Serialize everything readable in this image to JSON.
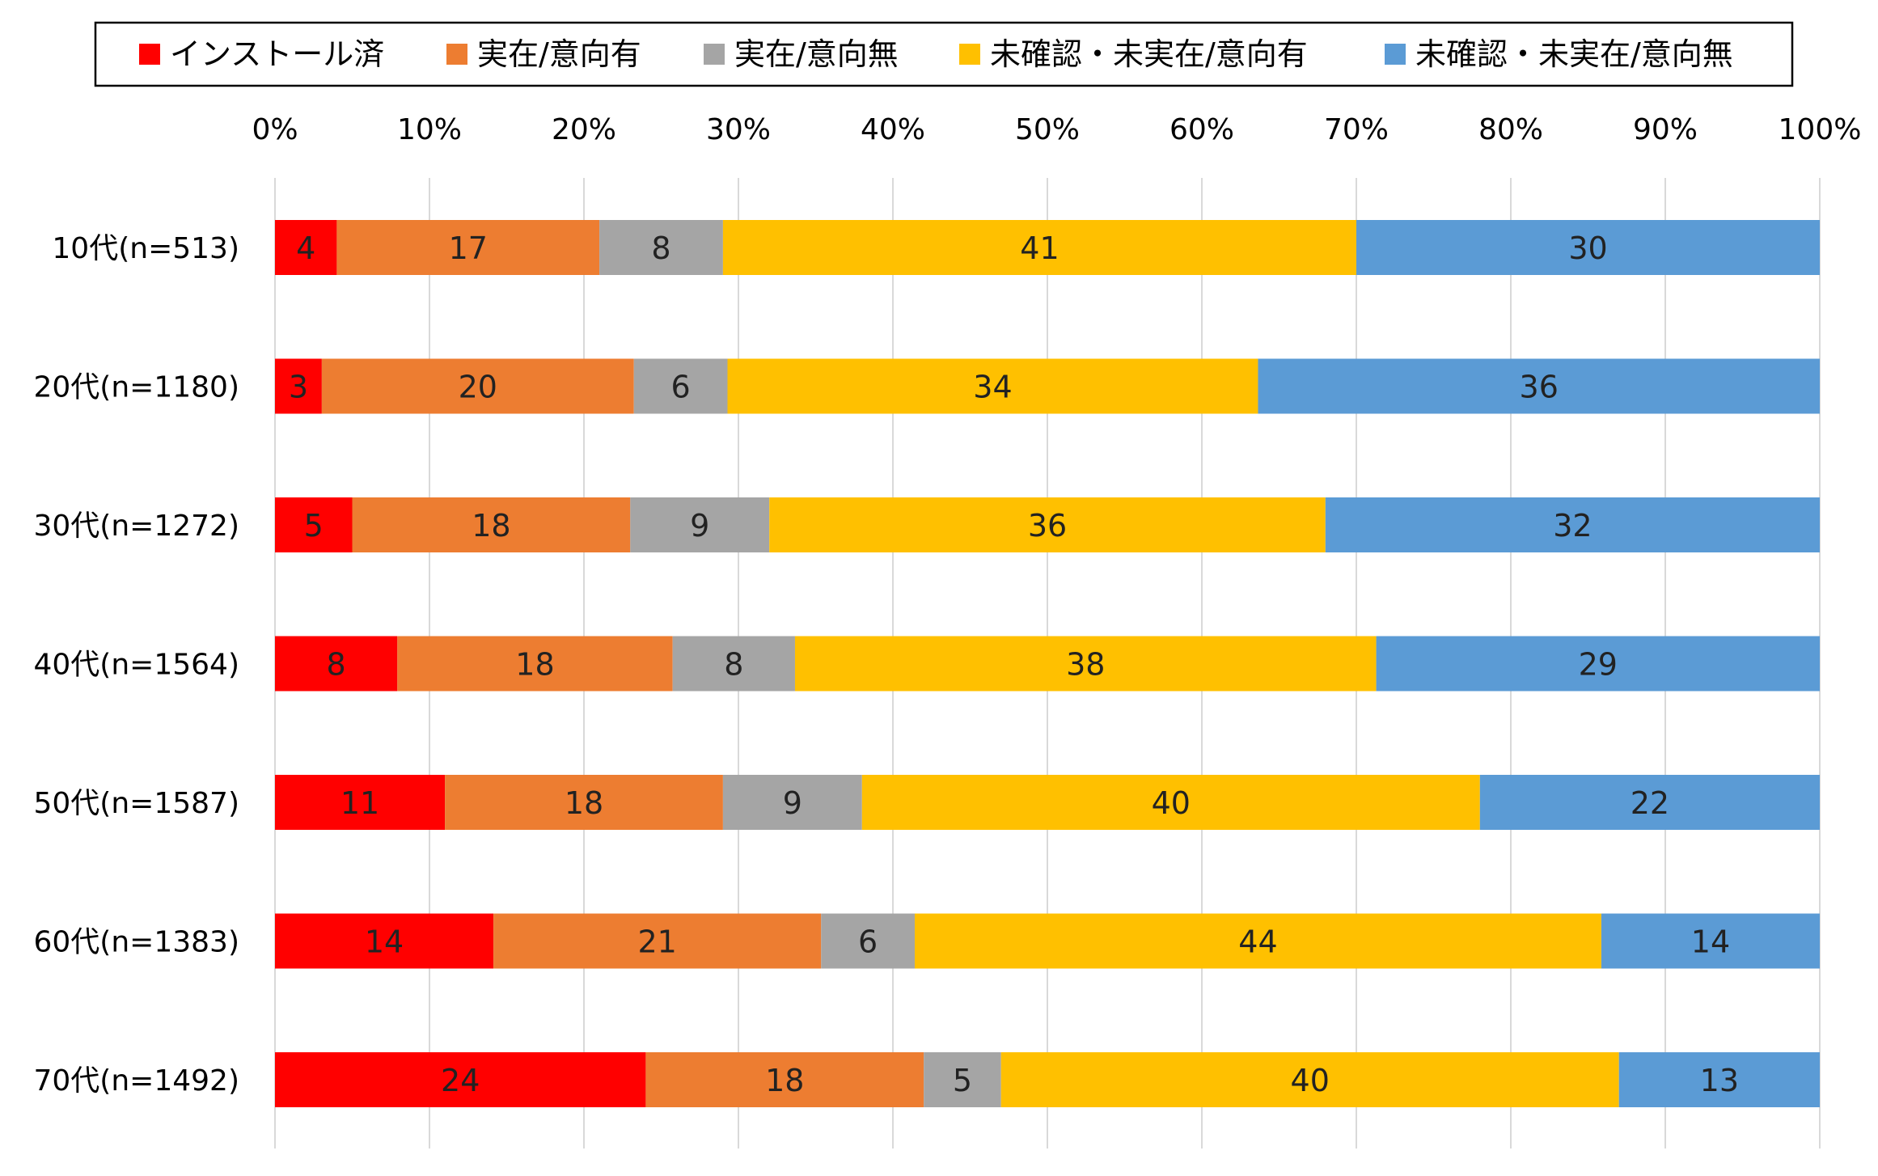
{
  "chart_data": {
    "type": "bar",
    "orientation": "horizontal",
    "stacked": "percent",
    "title": "",
    "xlabel": "",
    "ylabel": "",
    "xlim": [
      0,
      100
    ],
    "x_ticks": [
      "0%",
      "10%",
      "20%",
      "30%",
      "40%",
      "50%",
      "60%",
      "70%",
      "80%",
      "90%",
      "100%"
    ],
    "x_axis_position": "top",
    "grid": "vertical",
    "legend_position": "top",
    "categories": [
      "10代(n=513)",
      "20代(n=1180)",
      "30代(n=1272)",
      "40代(n=1564)",
      "50代(n=1587)",
      "60代(n=1383)",
      "70代(n=1492)"
    ],
    "series": [
      {
        "name": "インストール済",
        "color": "#FF0000",
        "values": [
          4,
          3,
          5,
          8,
          11,
          14,
          24
        ]
      },
      {
        "name": "実在/意向有",
        "color": "#ED7D31",
        "values": [
          17,
          20,
          18,
          18,
          18,
          21,
          18
        ]
      },
      {
        "name": "実在/意向無",
        "color": "#A5A5A5",
        "values": [
          8,
          6,
          9,
          8,
          9,
          6,
          5
        ]
      },
      {
        "name": "未確認・未実在/意向有",
        "color": "#FFC000",
        "values": [
          41,
          34,
          36,
          38,
          40,
          44,
          40
        ]
      },
      {
        "name": "未確認・未実在/意向無",
        "color": "#5B9BD5",
        "values": [
          30,
          36,
          32,
          29,
          22,
          14,
          13
        ]
      }
    ]
  }
}
